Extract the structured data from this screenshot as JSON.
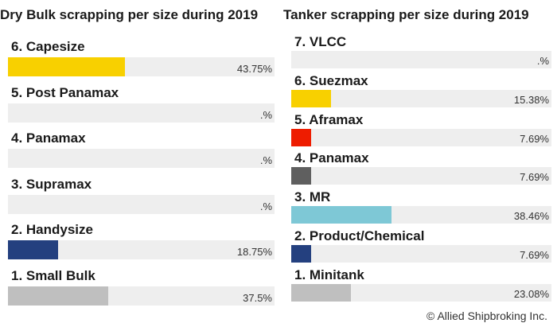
{
  "chart_data": [
    {
      "type": "bar",
      "title": "Dry Bulk scrapping per size during 2019",
      "categories": [
        "6. Capesize",
        "5. Post Panamax",
        "4. Panamax",
        "3. Supramax",
        "2. Handysize",
        "1. Small Bulk"
      ],
      "values": [
        43.75,
        null,
        null,
        null,
        18.75,
        37.5
      ],
      "value_labels": [
        "43.75%",
        ".%",
        ".%",
        ".%",
        "18.75%",
        "37.5%"
      ],
      "colors": [
        "#f8d000",
        "#bfbfbf",
        "#bfbfbf",
        "#bfbfbf",
        "#24407f",
        "#bfbfbf"
      ],
      "xlim": [
        0,
        100
      ]
    },
    {
      "type": "bar",
      "title": "Tanker scrapping per size during 2019",
      "categories": [
        "7. VLCC",
        "6. Suezmax",
        "5. Aframax",
        "4. Panamax",
        "3. MR",
        "2. Product/Chemical",
        "1. Minitank"
      ],
      "values": [
        null,
        15.38,
        7.69,
        7.69,
        38.46,
        7.69,
        23.08
      ],
      "value_labels": [
        ".%",
        "15.38%",
        "7.69%",
        "7.69%",
        "38.46%",
        "7.69%",
        "23.08%"
      ],
      "colors": [
        "#bfbfbf",
        "#f8d000",
        "#ee1c00",
        "#5f5f5f",
        "#7ec8d6",
        "#24407f",
        "#bfbfbf"
      ],
      "xlim": [
        0,
        100
      ]
    }
  ],
  "footer": {
    "copyright": "© Allied Shipbroking Inc."
  }
}
